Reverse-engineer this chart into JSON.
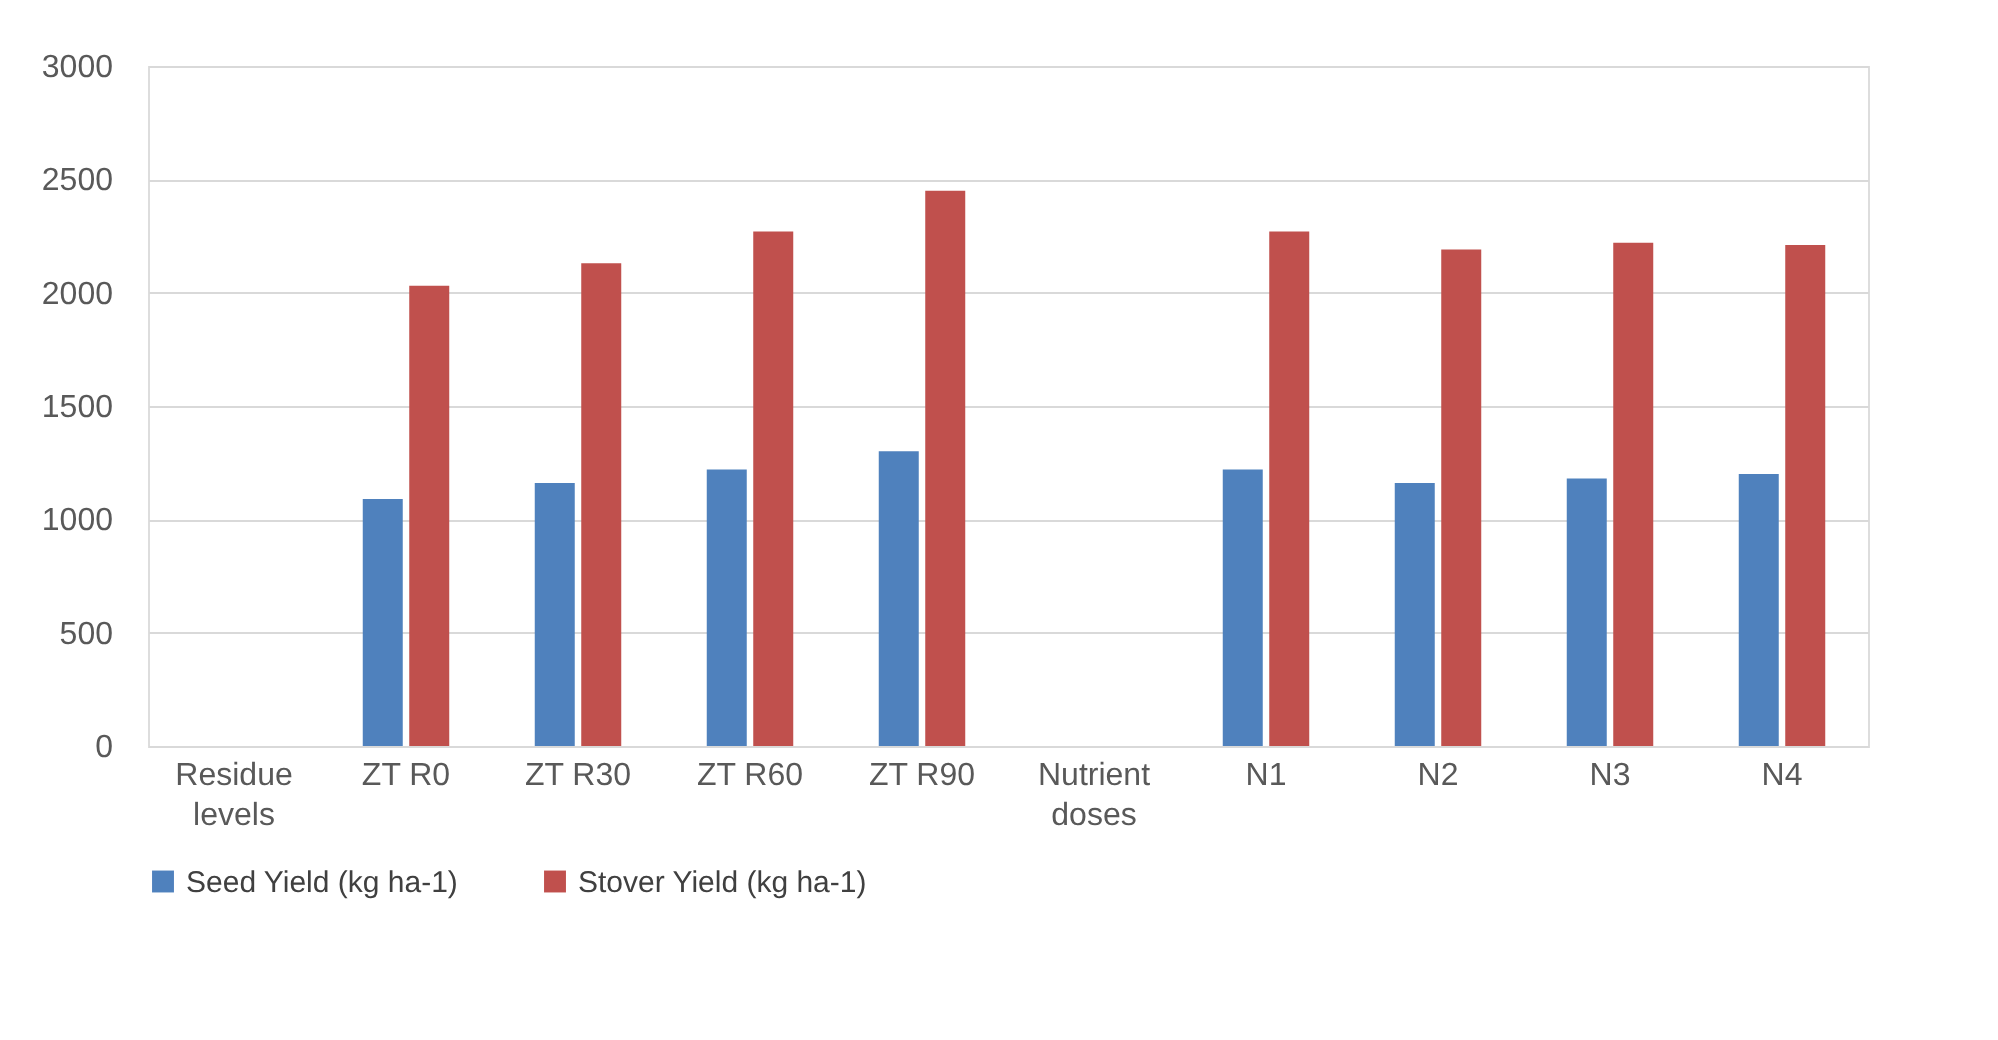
{
  "chart_data": {
    "type": "bar",
    "categories": [
      "Residue levels",
      "ZT R0",
      "ZT R30",
      "ZT R60",
      "ZT R90",
      "Nutrient doses",
      "N1",
      "N2",
      "N3",
      "N4"
    ],
    "series": [
      {
        "name": "Seed Yield (kg ha-1)",
        "color": "#4f81bd",
        "values": [
          null,
          1090,
          1160,
          1220,
          1300,
          null,
          1220,
          1160,
          1180,
          1200
        ]
      },
      {
        "name": "Stover Yield (kg ha-1)",
        "color": "#c0504d",
        "values": [
          null,
          2030,
          2130,
          2270,
          2450,
          null,
          2270,
          2190,
          2220,
          2210
        ]
      }
    ],
    "ylim": [
      0,
      3000
    ],
    "yticks": [
      0,
      500,
      1000,
      1500,
      2000,
      2500,
      3000
    ],
    "grid": "y",
    "legend": "bottom"
  }
}
